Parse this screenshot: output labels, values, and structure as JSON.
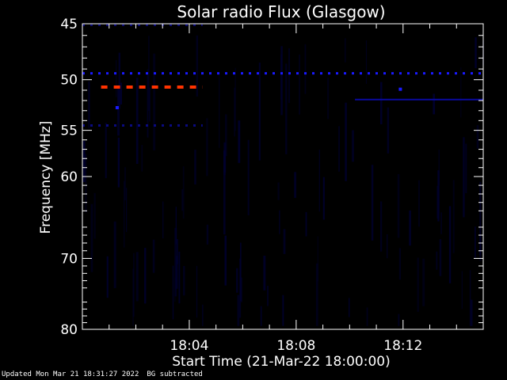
{
  "chart_data": {
    "type": "heatmap",
    "title": "Solar radio Flux (Glasgow)",
    "xlabel": "Start Time (21-Mar-22 18:00:00)",
    "ylabel": "Frequency [MHz]",
    "x_unit": "minutes after 18:00:00",
    "xlim": [
      0,
      15
    ],
    "ylim": [
      45,
      80
    ],
    "y_scale": "log",
    "y_inverted": true,
    "x_ticks": [
      {
        "value": 4,
        "label": "18:04"
      },
      {
        "value": 8,
        "label": "18:08"
      },
      {
        "value": 12,
        "label": "18:12"
      }
    ],
    "y_ticks": [
      {
        "value": 45,
        "label": "45"
      },
      {
        "value": 50,
        "label": "50"
      },
      {
        "value": 55,
        "label": "55"
      },
      {
        "value": 60,
        "label": "60"
      },
      {
        "value": 70,
        "label": "70"
      },
      {
        "value": 80,
        "label": "80"
      }
    ],
    "features": [
      {
        "name": "",
        "freq_mhz": 49.4,
        "x_start": 0,
        "x_end": 15,
        "style": "dashed",
        "color": "#1a1aff"
      },
      {
        "name": "",
        "freq_mhz": 50.7,
        "x_start": 0.7,
        "x_end": 4.5,
        "style": "dashed",
        "color": "#ff3300"
      },
      {
        "name": "",
        "freq_mhz": 54.5,
        "x_start": 0,
        "x_end": 4.5,
        "style": "dashed",
        "color": "#0a0a80"
      },
      {
        "name": "",
        "freq_mhz": 45.1,
        "x_start": 0,
        "x_end": 4.5,
        "style": "dashed",
        "color": "#0a0a70"
      },
      {
        "name": "",
        "freq_mhz": 51.9,
        "x_start": 10.2,
        "x_end": 15,
        "style": "solid",
        "color": "#0a0aa0"
      }
    ],
    "spots": [
      {
        "x": 1.3,
        "freq_mhz": 52.7,
        "color": "#1a1aff"
      },
      {
        "x": 11.9,
        "freq_mhz": 50.9,
        "color": "#1a1aff"
      }
    ],
    "background_color": "#000000",
    "noise_color": "#000030"
  },
  "footer": {
    "updated": "Updated Mon Mar 21 18:31:27 2022",
    "note": "BG subtracted"
  }
}
